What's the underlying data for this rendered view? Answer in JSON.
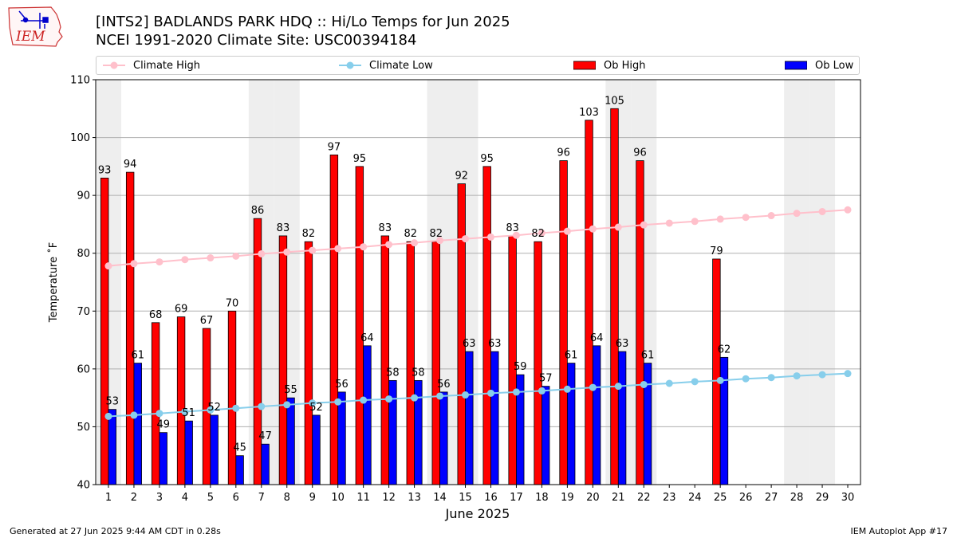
{
  "header": {
    "title_line1": "[INTS2] BADLANDS PARK HDQ :: Hi/Lo Temps for Jun 2025",
    "title_line2": "NCEI 1991-2020 Climate Site: USC00394184",
    "logo_text": "IEM"
  },
  "footer": {
    "generated": "Generated at 27 Jun 2025 9:44 AM CDT in 0.28s",
    "app": "IEM Autoplot App #17"
  },
  "colors": {
    "ob_high": "#ff0000",
    "ob_low": "#0000ff",
    "climate_high": "#ffc0cb",
    "climate_low": "#87ceeb",
    "weekend_shade": "#eeeeee",
    "grid": "#b0b0b0"
  },
  "chart_data": {
    "type": "bar",
    "xlabel": "June 2025",
    "ylabel": "Temperature ˚F",
    "ylim": [
      40,
      110
    ],
    "yticks": [
      40,
      50,
      60,
      70,
      80,
      90,
      100,
      110
    ],
    "grid": "horizontal",
    "legend_position": "top",
    "shaded_days": [
      1,
      7,
      8,
      14,
      15,
      21,
      22,
      28,
      29
    ],
    "days": [
      1,
      2,
      3,
      4,
      5,
      6,
      7,
      8,
      9,
      10,
      11,
      12,
      13,
      14,
      15,
      16,
      17,
      18,
      19,
      20,
      21,
      22,
      23,
      24,
      25,
      26,
      27,
      28,
      29,
      30
    ],
    "series": [
      {
        "name": "Climate High",
        "kind": "line",
        "values": [
          77.8,
          78.2,
          78.5,
          78.9,
          79.2,
          79.5,
          79.9,
          80.2,
          80.5,
          80.8,
          81.1,
          81.5,
          81.8,
          82.2,
          82.5,
          82.8,
          83.1,
          83.5,
          83.8,
          84.2,
          84.5,
          84.9,
          85.2,
          85.5,
          85.9,
          86.2,
          86.5,
          86.9,
          87.2,
          87.5
        ]
      },
      {
        "name": "Climate Low",
        "kind": "line",
        "values": [
          51.8,
          52.0,
          52.3,
          52.6,
          52.9,
          53.2,
          53.5,
          53.8,
          54.1,
          54.3,
          54.6,
          54.8,
          55.0,
          55.3,
          55.5,
          55.8,
          56.0,
          56.2,
          56.5,
          56.8,
          57.0,
          57.3,
          57.5,
          57.8,
          58.0,
          58.3,
          58.5,
          58.8,
          59.0,
          59.2
        ]
      },
      {
        "name": "Ob High",
        "kind": "bar",
        "values": [
          93,
          94,
          68,
          69,
          67,
          70,
          86,
          83,
          82,
          97,
          95,
          83,
          82,
          82,
          92,
          95,
          83,
          82,
          96,
          103,
          105,
          96,
          null,
          null,
          79,
          null,
          null,
          null,
          null,
          null
        ]
      },
      {
        "name": "Ob Low",
        "kind": "bar",
        "values": [
          53,
          61,
          49,
          51,
          52,
          45,
          47,
          55,
          52,
          56,
          64,
          58,
          58,
          56,
          63,
          63,
          59,
          57,
          61,
          64,
          63,
          61,
          null,
          null,
          62,
          null,
          null,
          null,
          null,
          null
        ]
      }
    ]
  }
}
